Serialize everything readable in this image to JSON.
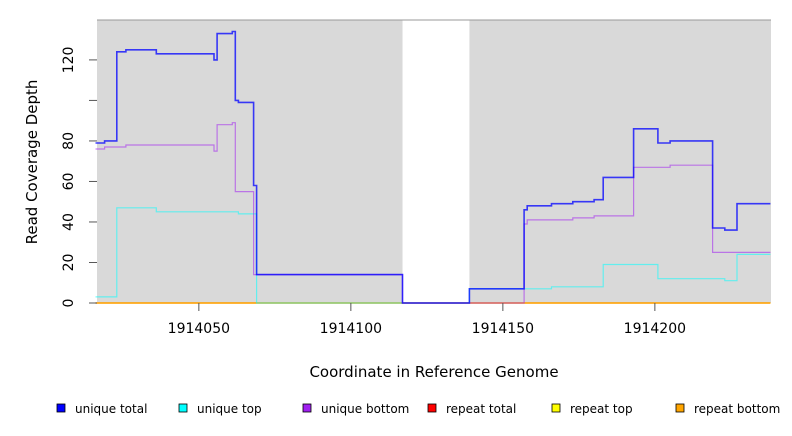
{
  "chart_data": {
    "type": "line",
    "step": true,
    "xlabel": "Coordinate in Reference Genome",
    "ylabel": "Read Coverage Depth",
    "xlim": [
      1914016.5,
      1914238.2
    ],
    "ylim": [
      0,
      139.7
    ],
    "x_ticks": [
      1914050,
      1914100,
      1914150,
      1914200
    ],
    "x_tick_labels": [
      "1914050",
      "1914100",
      "1914150",
      "1914200"
    ],
    "y_ticks": [
      0,
      20,
      40,
      60,
      80,
      100,
      120
    ],
    "y_tick_labels": [
      "0",
      "20",
      "40",
      "60",
      "80",
      "",
      "120"
    ],
    "grid": false,
    "background": "#d9d9d9",
    "gap_region": [
      1914117,
      1914139
    ],
    "x_end": 1914238,
    "legend_position": "bottom",
    "series": [
      {
        "name": "unique total",
        "color": "#0000ff",
        "x": [
          1914016,
          1914019,
          1914023,
          1914026,
          1914036,
          1914055,
          1914056,
          1914061,
          1914062,
          1914063,
          1914068,
          1914069,
          1914117,
          1914139,
          1914157,
          1914158,
          1914166,
          1914173,
          1914180,
          1914183,
          1914193,
          1914201,
          1914205,
          1914219,
          1914223,
          1914227
        ],
        "values": [
          79,
          80,
          124,
          125,
          123,
          120,
          133,
          134,
          100,
          99,
          58,
          14,
          0,
          7,
          46,
          48,
          49,
          50,
          51,
          62,
          86,
          79,
          80,
          37,
          36,
          49
        ]
      },
      {
        "name": "unique top",
        "color": "#00ffff",
        "x": [
          1914016,
          1914023,
          1914036,
          1914063,
          1914069,
          1914139,
          1914166,
          1914183,
          1914201,
          1914223,
          1914227
        ],
        "values": [
          3,
          47,
          45,
          44,
          0,
          7,
          8,
          19,
          12,
          11,
          24
        ]
      },
      {
        "name": "unique bottom",
        "color": "#a020f0",
        "x": [
          1914016,
          1914019,
          1914026,
          1914055,
          1914056,
          1914061,
          1914062,
          1914068,
          1914117,
          1914157,
          1914158,
          1914173,
          1914180,
          1914193,
          1914205,
          1914219
        ],
        "values": [
          76,
          77,
          78,
          75,
          88,
          89,
          55,
          14,
          0,
          39,
          41,
          42,
          43,
          67,
          68,
          25
        ]
      },
      {
        "name": "repeat total",
        "color": "#ff0000",
        "x": [
          1914016
        ],
        "values": [
          0
        ]
      },
      {
        "name": "repeat top",
        "color": "#ffff00",
        "x": [
          1914016
        ],
        "values": [
          0
        ]
      },
      {
        "name": "repeat bottom",
        "color": "#ffa500",
        "x": [
          1914016
        ],
        "values": [
          0
        ]
      }
    ]
  }
}
